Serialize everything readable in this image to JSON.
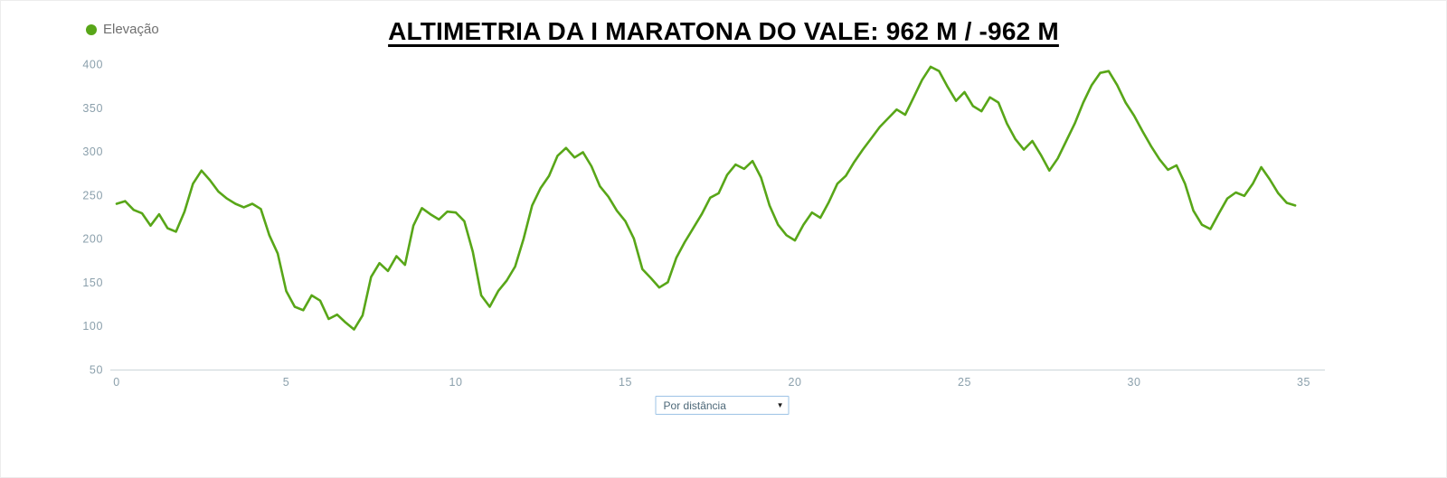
{
  "header": {
    "legend": {
      "label": "Elevação"
    },
    "title": "ALTIMETRIA DA I MARATONA DO VALE: 962 M / -962 M"
  },
  "controls": {
    "distance_mode_select": {
      "value": "Por distância"
    }
  },
  "icons": {
    "dropdown_arrow": "▼"
  },
  "colors": {
    "series_green": "#58a618",
    "legend_text": "#6f6f6f",
    "axis_text": "#8ba0ac",
    "axis_line": "#ccd5da",
    "select_border": "#9dc3e6",
    "select_text": "#4d6878",
    "title_text": "#000000"
  },
  "chart_data": {
    "type": "line",
    "title": "ALTIMETRIA DA I MARATONA DO VALE: 962 M / -962 M",
    "xlabel": "",
    "ylabel": "",
    "legend": [
      "Elevação"
    ],
    "legend_position": "top-left",
    "grid": false,
    "xlim": [
      0,
      35.6
    ],
    "ylim": [
      50,
      400
    ],
    "x_ticks": [
      0,
      5,
      10,
      15,
      20,
      25,
      30,
      35
    ],
    "y_ticks": [
      50,
      100,
      150,
      200,
      250,
      300,
      350,
      400
    ],
    "x_unit": "km",
    "y_unit": "m",
    "series": [
      {
        "name": "Elevação",
        "color": "#58a618",
        "x": [
          0,
          0.25,
          0.5,
          0.75,
          1,
          1.25,
          1.5,
          1.75,
          2,
          2.25,
          2.5,
          2.75,
          3,
          3.25,
          3.5,
          3.75,
          4,
          4.25,
          4.5,
          4.75,
          5,
          5.25,
          5.5,
          5.75,
          6,
          6.25,
          6.5,
          6.75,
          7,
          7.25,
          7.5,
          7.75,
          8,
          8.25,
          8.5,
          8.75,
          9,
          9.25,
          9.5,
          9.75,
          10,
          10.25,
          10.5,
          10.75,
          11,
          11.25,
          11.5,
          11.75,
          12,
          12.25,
          12.5,
          12.75,
          13,
          13.25,
          13.5,
          13.75,
          14,
          14.25,
          14.5,
          14.75,
          15,
          15.25,
          15.5,
          15.75,
          16,
          16.25,
          16.5,
          16.75,
          17,
          17.25,
          17.5,
          17.75,
          18,
          18.25,
          18.5,
          18.75,
          19,
          19.25,
          19.5,
          19.75,
          20,
          20.25,
          20.5,
          20.75,
          21,
          21.25,
          21.5,
          21.75,
          22,
          22.25,
          22.5,
          22.75,
          23,
          23.25,
          23.5,
          23.75,
          24,
          24.25,
          24.5,
          24.75,
          25,
          25.25,
          25.5,
          25.75,
          26,
          26.25,
          26.5,
          26.75,
          27,
          27.25,
          27.5,
          27.75,
          28,
          28.25,
          28.5,
          28.75,
          29,
          29.25,
          29.5,
          29.75,
          30,
          30.25,
          30.5,
          30.75,
          31,
          31.25,
          31.5,
          31.75,
          32,
          32.25,
          32.5,
          32.75,
          33,
          33.25,
          33.5,
          33.75,
          34,
          34.25,
          34.5,
          34.75
        ],
        "values": [
          240,
          243,
          233,
          229,
          215,
          228,
          212,
          208,
          231,
          263,
          278,
          267,
          254,
          246,
          240,
          236,
          240,
          234,
          204,
          183,
          140,
          122,
          118,
          135,
          129,
          108,
          113,
          104,
          96,
          112,
          156,
          172,
          163,
          180,
          170,
          215,
          235,
          228,
          222,
          231,
          230,
          220,
          185,
          135,
          122,
          140,
          152,
          168,
          200,
          238,
          258,
          272,
          295,
          304,
          293,
          299,
          283,
          260,
          248,
          232,
          220,
          200,
          165,
          155,
          144,
          150,
          178,
          196,
          212,
          228,
          247,
          252,
          273,
          285,
          280,
          289,
          270,
          238,
          216,
          204,
          198,
          216,
          230,
          224,
          242,
          263,
          272,
          288,
          302,
          315,
          328,
          338,
          348,
          342,
          362,
          382,
          397,
          392,
          374,
          358,
          368,
          352,
          346,
          362,
          356,
          332,
          314,
          302,
          312,
          296,
          278,
          292,
          312,
          332,
          356,
          376,
          390,
          392,
          376,
          356,
          341,
          323,
          306,
          291,
          279,
          284,
          263,
          232,
          216,
          211,
          229,
          246,
          253,
          249,
          263,
          282,
          268,
          252,
          241,
          238
        ]
      }
    ]
  }
}
